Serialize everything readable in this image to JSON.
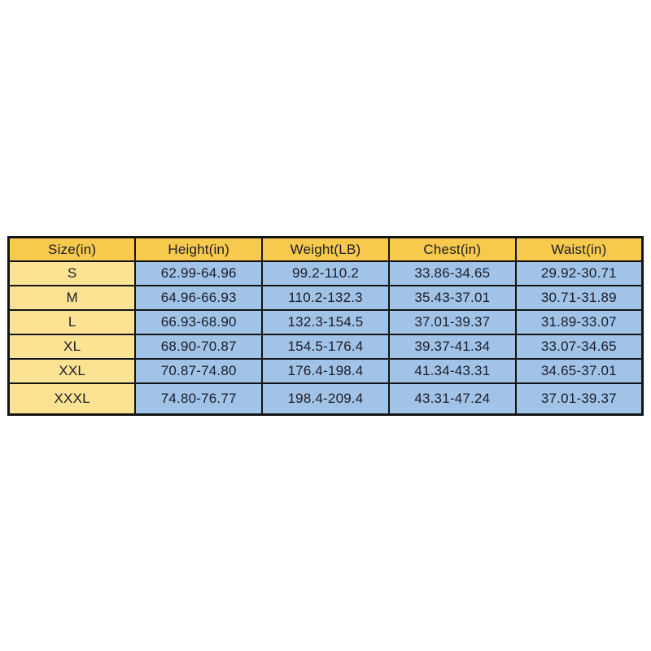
{
  "chart_data": {
    "type": "table",
    "title": "",
    "columns": [
      "Size(in)",
      "Height(in)",
      "Weight(LB)",
      "Chest(in)",
      "Waist(in)"
    ],
    "rows": [
      [
        "S",
        "62.99-64.96",
        "99.2-110.2",
        "33.86-34.65",
        "29.92-30.71"
      ],
      [
        "M",
        "64.96-66.93",
        "110.2-132.3",
        "35.43-37.01",
        "30.71-31.89"
      ],
      [
        "L",
        "66.93-68.90",
        "132.3-154.5",
        "37.01-39.37",
        "31.89-33.07"
      ],
      [
        "XL",
        "68.90-70.87",
        "154.5-176.4",
        "39.37-41.34",
        "33.07-34.65"
      ],
      [
        "XXL",
        "70.87-74.80",
        "176.4-198.4",
        "41.34-43.31",
        "34.65-37.01"
      ],
      [
        "XXXL",
        "74.80-76.77",
        "198.4-209.4",
        "43.31-47.24",
        "37.01-39.37"
      ]
    ]
  },
  "colors": {
    "header_bg": "#F7C94C",
    "size_col_bg": "#FBE393",
    "data_cell_bg": "#A2C3E8",
    "border": "#141414",
    "text": "#1c1c28",
    "page_bg": "#ffffff"
  }
}
